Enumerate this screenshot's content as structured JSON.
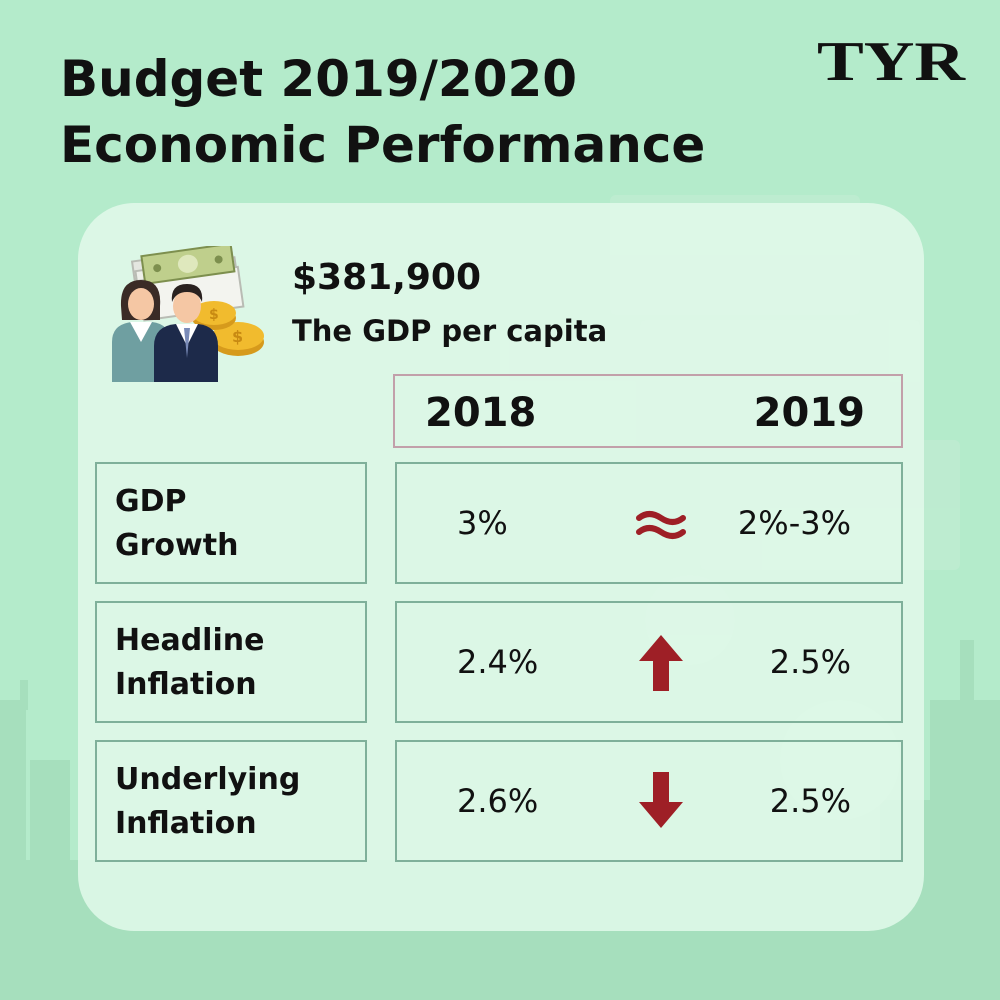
{
  "header": {
    "title_line1": "Budget 2019/2020",
    "title_line2": "Economic Performance",
    "logo_text": "TYR"
  },
  "gdp": {
    "value": "$381,900",
    "label": "The GDP per capita",
    "icon": "people-money-icon"
  },
  "table": {
    "years": [
      "2018",
      "2019"
    ],
    "rows": [
      {
        "label_line1": "GDP",
        "label_line2": "Growth",
        "value_2018": "3%",
        "value_2019": "2%-3%",
        "trend": "approximately-equal-icon"
      },
      {
        "label_line1": "Headline",
        "label_line2": "Inflation",
        "value_2018": "2.4%",
        "value_2019": "2.5%",
        "trend": "arrow-up-icon"
      },
      {
        "label_line1": "Underlying",
        "label_line2": "Inflation",
        "value_2018": "2.6%",
        "value_2019": "2.5%",
        "trend": "arrow-down-icon"
      }
    ]
  },
  "colors": {
    "background": "#b4ebcb",
    "card": "#e2f9ea",
    "accent_red": "#9e1f26",
    "border_green": "#7fb09a",
    "header_border": "#c2a0aa"
  }
}
